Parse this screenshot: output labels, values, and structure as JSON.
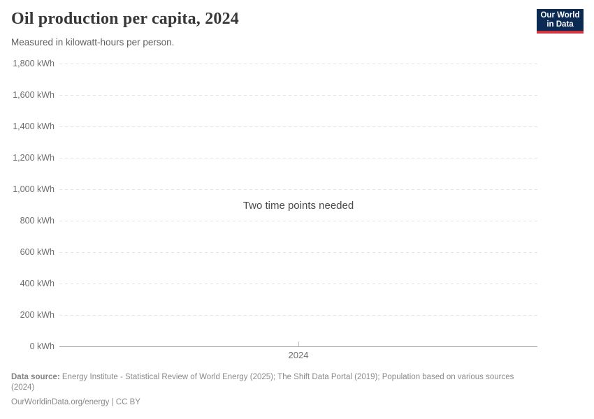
{
  "header": {
    "title": "Oil production per capita, 2024",
    "subtitle": "Measured in kilowatt-hours per person.",
    "logo": {
      "line1": "Our World",
      "line2": "in Data",
      "bg_color": "#0a2953",
      "accent_color": "#d1353f"
    }
  },
  "chart_data": {
    "type": "line",
    "title": "Oil production per capita, 2024",
    "subtitle": "Measured in kilowatt-hours per person.",
    "empty_state_message": "Two time points needed",
    "series": [],
    "x_ticks": [
      "2024"
    ],
    "y_ticks": [
      {
        "value": 1800,
        "label": "1,800 kWh"
      },
      {
        "value": 1600,
        "label": "1,600 kWh"
      },
      {
        "value": 1400,
        "label": "1,400 kWh"
      },
      {
        "value": 1200,
        "label": "1,200 kWh"
      },
      {
        "value": 1000,
        "label": "1,000 kWh"
      },
      {
        "value": 800,
        "label": "800 kWh"
      },
      {
        "value": 600,
        "label": "600 kWh"
      },
      {
        "value": 400,
        "label": "400 kWh"
      },
      {
        "value": 200,
        "label": "200 kWh"
      },
      {
        "value": 0,
        "label": "0 kWh"
      }
    ],
    "ylim": [
      0,
      1800
    ],
    "xlabel": "",
    "ylabel": "",
    "grid": true,
    "grid_color": "#e5e5e5",
    "axis_color": "#a6a6a6"
  },
  "footer": {
    "data_source_label": "Data source:",
    "data_source_text": "Energy Institute - Statistical Review of World Energy (2025); The Shift Data Portal (2019); Population based on various sources",
    "data_source_wrap": "(2024)",
    "license": "OurWorldinData.org/energy | CC BY"
  }
}
